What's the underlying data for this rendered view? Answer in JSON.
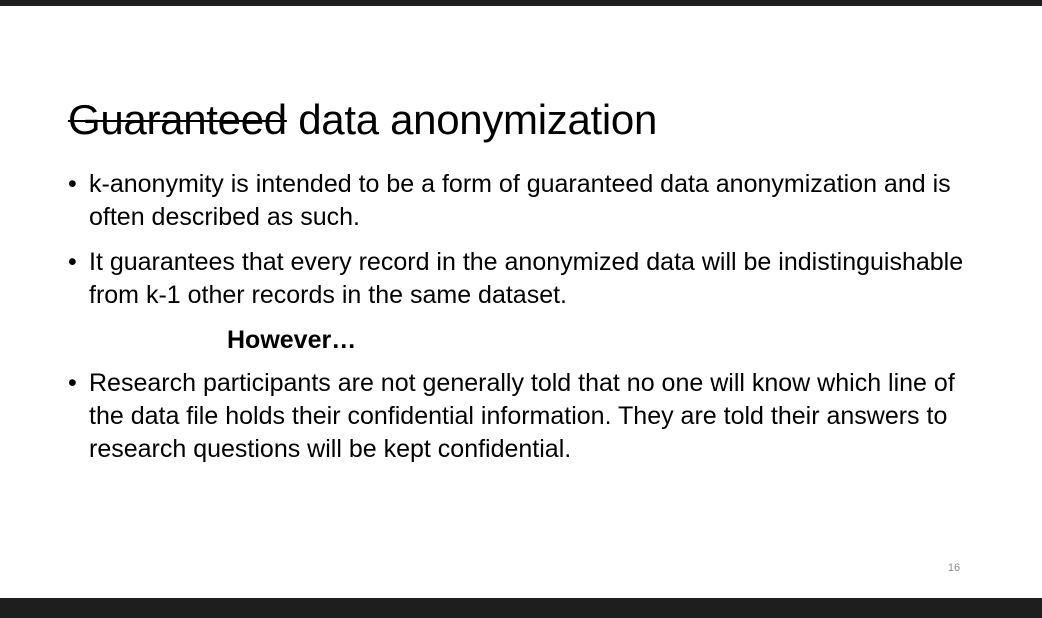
{
  "slide": {
    "title_struck": "Guaranteed",
    "title_rest": " data anonymization",
    "bullet_symbol": "•",
    "bullets": [
      "k-anonymity is intended to be  a form of guaranteed data anonymization and is often described as such.",
      "It guarantees that every record in the anonymized data will be indistinguishable from k-1 other records in the same dataset."
    ],
    "however": "However…",
    "bullets_after": [
      "Research participants are not generally told that no one will know which line of the data file holds their confidential information. They are told their answers to research questions  will be kept confidential."
    ],
    "page_number": "16"
  },
  "colors": {
    "frame": "#1e1e1e",
    "background": "#ffffff",
    "text": "#000000",
    "page_number": "#8a8a8a"
  }
}
